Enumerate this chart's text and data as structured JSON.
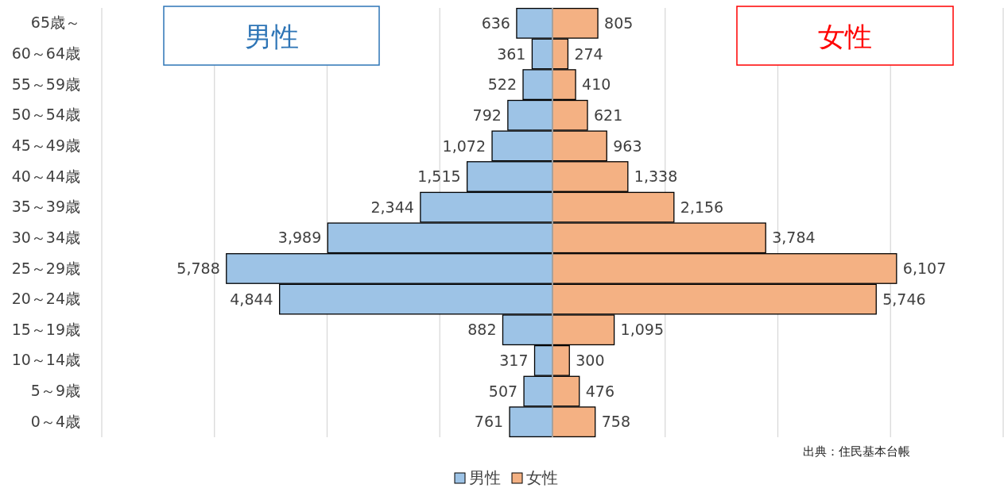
{
  "chart_data": [
    {
      "type": "bar",
      "orientation": "horizontal",
      "categories": [
        "65歳～",
        "60～64歳",
        "55～59歳",
        "50～54歳",
        "45～49歳",
        "40～44歳",
        "35～39歳",
        "30～34歳",
        "25～29歳",
        "20～24歳",
        "15～19歳",
        "10～14歳",
        "5～9歳",
        "0～4歳"
      ],
      "series": [
        {
          "name": "男性",
          "color": "#9dc3e6",
          "values": [
            636,
            361,
            522,
            792,
            1072,
            1515,
            2344,
            3989,
            5788,
            4844,
            882,
            317,
            507,
            761
          ],
          "value_labels": [
            "636",
            "361",
            "522",
            "792",
            "1,072",
            "1,515",
            "2,344",
            "3,989",
            "5,788",
            "4,844",
            "882",
            "317",
            "507",
            "761"
          ]
        }
      ],
      "xlim": [
        8000,
        0
      ],
      "xticks": [
        {
          "value": 8000,
          "label": null
        },
        {
          "value": 6000,
          "label": null
        },
        {
          "value": 4000,
          "label": null
        },
        {
          "value": 2000,
          "label": null
        },
        {
          "value": 0,
          "label": null
        }
      ],
      "tick_labels": "y",
      "grid": "x",
      "legend": "bottom",
      "annotations": [
        "男性"
      ]
    },
    {
      "type": "bar",
      "orientation": "horizontal",
      "categories": [
        null,
        null,
        null,
        null,
        null,
        null,
        null,
        null,
        null,
        null,
        null,
        null,
        null,
        null
      ],
      "series": [
        {
          "name": "女性",
          "color": "#f4b183",
          "values": [
            805,
            274,
            410,
            621,
            963,
            1338,
            2156,
            3784,
            6107,
            5746,
            1095,
            300,
            476,
            758
          ],
          "value_labels": [
            "805",
            "274",
            "410",
            "621",
            "963",
            "1,338",
            "2,156",
            "3,784",
            "6,107",
            "5,746",
            "1,095",
            "300",
            "476",
            "758"
          ]
        }
      ],
      "xlim": [
        0,
        8000
      ],
      "xticks": [
        {
          "value": 0,
          "label": null
        },
        {
          "value": 2000,
          "label": null
        },
        {
          "value": 4000,
          "label": null
        },
        {
          "value": 6000,
          "label": null
        },
        {
          "value": 8000,
          "label": null
        }
      ],
      "tick_labels": false,
      "grid": "x",
      "legend": "bottom",
      "annotations": [
        "女性",
        "出典：住民基本台帳"
      ]
    }
  ]
}
